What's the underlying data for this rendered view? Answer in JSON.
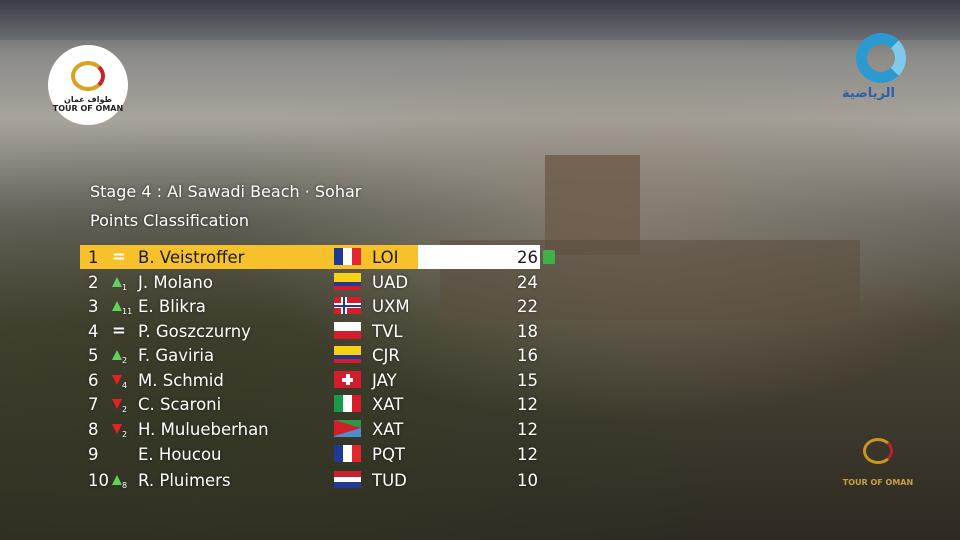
{
  "header": {
    "stage": "Stage 4 : Al Sawadi Beach · Sohar",
    "classification": "Points Classification"
  },
  "logos": {
    "tour_logo_text": "TOUR OF OMAN",
    "tour_logo_arabic": "طواف عمان",
    "channel_text": "الرياضية"
  },
  "colors": {
    "leader_bar": "#f7c12b",
    "up": "#5fd35a",
    "down": "#e52222",
    "jersey": "#3fb04a"
  },
  "rows": [
    {
      "pos": "1",
      "change": "=",
      "dir": "same",
      "delta": "",
      "name": "B. Veistroffer",
      "flag": "fr",
      "team": "LOI",
      "points": "26",
      "jersey": "green-jersey-icon"
    },
    {
      "pos": "2",
      "change": "",
      "dir": "up",
      "delta": "1",
      "name": "J. Molano",
      "flag": "co",
      "team": "UAD",
      "points": "24"
    },
    {
      "pos": "3",
      "change": "",
      "dir": "up",
      "delta": "11",
      "name": "E. Blikra",
      "flag": "no",
      "team": "UXM",
      "points": "22"
    },
    {
      "pos": "4",
      "change": "=",
      "dir": "same",
      "delta": "",
      "name": "P. Goszczurny",
      "flag": "pl",
      "team": "TVL",
      "points": "18"
    },
    {
      "pos": "5",
      "change": "",
      "dir": "up",
      "delta": "2",
      "name": "F. Gaviria",
      "flag": "co",
      "team": "CJR",
      "points": "16"
    },
    {
      "pos": "6",
      "change": "",
      "dir": "down",
      "delta": "4",
      "name": "M. Schmid",
      "flag": "ch",
      "team": "JAY",
      "points": "15"
    },
    {
      "pos": "7",
      "change": "",
      "dir": "down",
      "delta": "2",
      "name": "C. Scaroni",
      "flag": "it",
      "team": "XAT",
      "points": "12"
    },
    {
      "pos": "8",
      "change": "",
      "dir": "down",
      "delta": "2",
      "name": "H. Mulueberhan",
      "flag": "er",
      "team": "XAT",
      "points": "12"
    },
    {
      "pos": "9",
      "change": "",
      "dir": "none",
      "delta": "",
      "name": "E. Houcou",
      "flag": "fr",
      "team": "PQT",
      "points": "12"
    },
    {
      "pos": "10",
      "change": "",
      "dir": "up",
      "delta": "8",
      "name": "R. Pluimers",
      "flag": "nl",
      "team": "TUD",
      "points": "10"
    }
  ]
}
